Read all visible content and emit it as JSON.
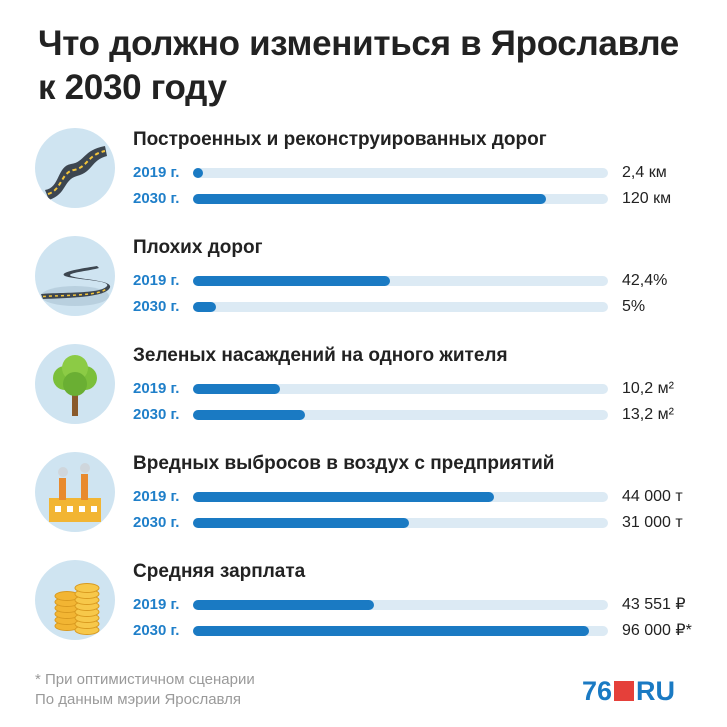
{
  "title_line1": "Что должно измениться в Ярославле",
  "title_line2": "к 2030 году",
  "colors": {
    "accent": "#1a7ac3",
    "track": "#dceaf4",
    "circle": "#cfe4f1",
    "logo_red": "#e5403a"
  },
  "chart_data": {
    "type": "bar",
    "orientation": "horizontal",
    "groups": [
      {
        "title": "Построенных и реконструированных дорог",
        "icon": "road-icon",
        "rows": [
          {
            "label": "2019 г.",
            "value_text": "2,4 км",
            "fraction": 0.02
          },
          {
            "label": "2030 г.",
            "value_text": "120 км",
            "fraction": 0.85
          }
        ]
      },
      {
        "title": "Плохих дорог",
        "icon": "winding-road-icon",
        "rows": [
          {
            "label": "2019 г.",
            "value_text": "42,4%",
            "fraction": 0.475
          },
          {
            "label": "2030 г.",
            "value_text": "5%",
            "fraction": 0.055
          }
        ]
      },
      {
        "title": "Зеленых насаждений на одного жителя",
        "icon": "tree-icon",
        "rows": [
          {
            "label": "2019 г.",
            "value_text": "10,2 м²",
            "fraction": 0.21
          },
          {
            "label": "2030 г.",
            "value_text": "13,2 м²",
            "fraction": 0.27
          }
        ]
      },
      {
        "title": "Вредных выбросов в воздух с предприятий",
        "icon": "factory-icon",
        "rows": [
          {
            "label": "2019 г.",
            "value_text": "44 000 т",
            "fraction": 0.725
          },
          {
            "label": "2030 г.",
            "value_text": "31 000 т",
            "fraction": 0.52
          }
        ]
      },
      {
        "title": "Средняя зарплата",
        "icon": "coins-icon",
        "rows": [
          {
            "label": "2019 г.",
            "value_text": "43 551 ₽",
            "fraction": 0.435
          },
          {
            "label": "2030 г.",
            "value_text": "96 000 ₽*",
            "fraction": 0.955
          }
        ]
      }
    ]
  },
  "footnote": "* При оптимистичном сценарии",
  "source": "По данным мэрии Ярославля",
  "logo": {
    "num": "76",
    "ru": "RU"
  }
}
